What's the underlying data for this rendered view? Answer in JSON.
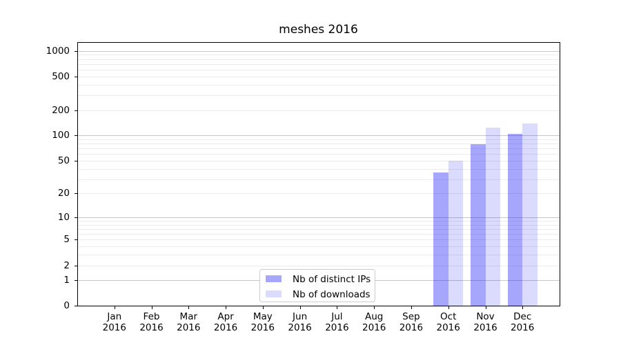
{
  "chart_data": {
    "type": "bar",
    "title": "meshes 2016",
    "categories": [
      "Jan",
      "Feb",
      "Mar",
      "Apr",
      "May",
      "Jun",
      "Jul",
      "Aug",
      "Sep",
      "Oct",
      "Nov",
      "Dec"
    ],
    "category_year": "2016",
    "series": [
      {
        "name": "Nb of distinct IPs",
        "fill": "rgba(0,0,245,0.35)",
        "hex_on_white": "#a8a8f2",
        "values": [
          0,
          0,
          0,
          0,
          0,
          0,
          0,
          0,
          0,
          36,
          79,
          105
        ]
      },
      {
        "name": "Nb of downloads",
        "fill": "rgba(0,0,245,0.14)",
        "hex_on_white": "#dcdcfb",
        "values": [
          0,
          0,
          0,
          0,
          0,
          0,
          0,
          0,
          0,
          50,
          124,
          140
        ]
      }
    ],
    "yticks": [
      0,
      1,
      2,
      5,
      10,
      20,
      50,
      100,
      200,
      500,
      1000
    ],
    "y_scale": "log10(value+1)",
    "ylim": [
      0,
      1270
    ],
    "major_grid": [
      1,
      10,
      100,
      1000
    ],
    "minor_grid": [
      2,
      3,
      4,
      5,
      6,
      7,
      8,
      9,
      20,
      30,
      40,
      50,
      60,
      70,
      80,
      90,
      200,
      300,
      400,
      500,
      600,
      700,
      800,
      900
    ],
    "grid": true,
    "legend_position": "lower center",
    "colors": {
      "bar_ips": "#a8a8f2",
      "bar_downloads": "#dcdcfb",
      "major_gridline": "#c6c6c6",
      "minor_gridline": "#ebebeb",
      "axis": "#000000",
      "legend_border": "#cccccc",
      "background": "#ffffff"
    }
  }
}
